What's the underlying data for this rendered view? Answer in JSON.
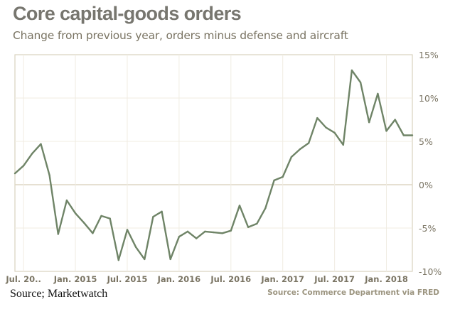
{
  "chart_data": {
    "type": "line",
    "title": "Core capital-goods orders",
    "subtitle": "Change from previous year, orders minus defense and aircraft",
    "source_note": "Source: Commerce Department via FRED",
    "ylim": [
      -10,
      15
    ],
    "y_ticks": [
      15,
      10,
      5,
      0,
      -5,
      -10
    ],
    "y_tick_labels": [
      "15%",
      "10%",
      "5%",
      "0%",
      "-5%",
      "-10%"
    ],
    "y_axis_position": "right",
    "x_tick_labels": [
      "Jul. 20..",
      "Jan. 2015",
      "Jul. 2015",
      "Jan. 2016",
      "Jul. 2016",
      "Jan. 2017",
      "Jul. 2017",
      "Jan. 2018"
    ],
    "x_tick_dates": [
      "2014-07",
      "2015-01",
      "2015-07",
      "2016-01",
      "2016-07",
      "2017-01",
      "2017-07",
      "2018-01"
    ],
    "xlim": [
      "2014-06",
      "2018-04"
    ],
    "grid": true,
    "line_color": "#6f8467",
    "x": [
      "2014-06",
      "2014-07",
      "2014-08",
      "2014-09",
      "2014-10",
      "2014-11",
      "2014-12",
      "2015-01",
      "2015-02",
      "2015-03",
      "2015-04",
      "2015-05",
      "2015-06",
      "2015-07",
      "2015-08",
      "2015-09",
      "2015-10",
      "2015-11",
      "2015-12",
      "2016-01",
      "2016-02",
      "2016-03",
      "2016-04",
      "2016-05",
      "2016-06",
      "2016-07",
      "2016-08",
      "2016-09",
      "2016-10",
      "2016-11",
      "2016-12",
      "2017-01",
      "2017-02",
      "2017-03",
      "2017-04",
      "2017-05",
      "2017-06",
      "2017-07",
      "2017-08",
      "2017-09",
      "2017-10",
      "2017-11",
      "2017-12",
      "2018-01",
      "2018-02",
      "2018-03",
      "2018-04"
    ],
    "values": [
      1.3,
      2.2,
      3.6,
      4.7,
      1.1,
      -5.7,
      -1.8,
      -3.3,
      -4.4,
      -5.6,
      -3.6,
      -3.9,
      -8.7,
      -5.2,
      -7.2,
      -8.6,
      -3.7,
      -3.1,
      -8.6,
      -6.0,
      -5.4,
      -6.2,
      -5.4,
      -5.5,
      -5.6,
      -5.3,
      -2.4,
      -4.9,
      -4.5,
      -2.7,
      0.5,
      0.9,
      3.2,
      4.1,
      4.8,
      7.7,
      6.6,
      6.0,
      4.6,
      13.2,
      11.8,
      7.2,
      10.5,
      6.2,
      7.5,
      5.7,
      5.7
    ]
  },
  "footer": {
    "source_left": "Source;  Marketwatch"
  }
}
